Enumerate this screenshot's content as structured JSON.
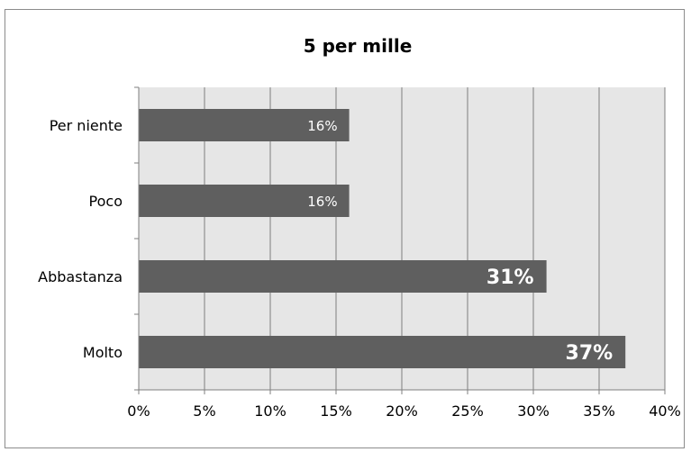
{
  "chart_data": {
    "type": "bar",
    "orientation": "horizontal",
    "title": "5 per mille",
    "categories": [
      "Per niente",
      "Poco",
      "Abbastanza",
      "Molto"
    ],
    "values": [
      16,
      16,
      31,
      37
    ],
    "data_labels": [
      "16%",
      "16%",
      "31%",
      "37%"
    ],
    "x_ticks": [
      "0%",
      "5%",
      "10%",
      "15%",
      "20%",
      "25%",
      "30%",
      "35%",
      "40%"
    ],
    "xlim": [
      0,
      40
    ],
    "xlabel": "",
    "ylabel": "",
    "grid": true,
    "legend": "none",
    "colors": {
      "bar": "#5f5f5f",
      "plot_background": "#e6e6e6",
      "gridline": "#7f7f7f",
      "frame": "#8c8c8c"
    }
  }
}
